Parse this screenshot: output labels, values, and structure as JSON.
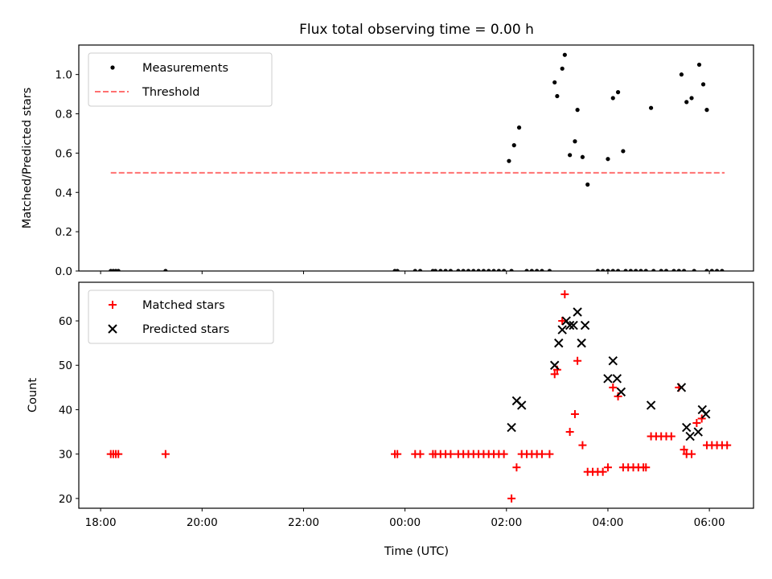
{
  "chart_data": {
    "title": "Flux total observing time = 0.00 h",
    "xlabel": "Time (UTC)",
    "x_unit": "hours since 18:00 UTC",
    "xlim": [
      -0.43,
      12.87
    ],
    "xticks": [
      {
        "v": 0,
        "label": "18:00"
      },
      {
        "v": 2,
        "label": "20:00"
      },
      {
        "v": 4,
        "label": "22:00"
      },
      {
        "v": 6,
        "label": "00:00"
      },
      {
        "v": 8,
        "label": "02:00"
      },
      {
        "v": 10,
        "label": "04:00"
      },
      {
        "v": 12,
        "label": "06:00"
      }
    ],
    "panels": [
      {
        "type": "scatter",
        "ylabel": "Matched/Predicted stars",
        "ylim": [
          0,
          1.15
        ],
        "yticks": [
          {
            "v": 0,
            "label": "0.0"
          },
          {
            "v": 0.2,
            "label": "0.2"
          },
          {
            "v": 0.4,
            "label": "0.4"
          },
          {
            "v": 0.6,
            "label": "0.6"
          },
          {
            "v": 0.8,
            "label": "0.8"
          },
          {
            "v": 1.0,
            "label": "1.0"
          }
        ],
        "legend_position": "top-left",
        "threshold": {
          "name": "Threshold",
          "y": 0.5,
          "x_range": [
            0.2,
            12.3
          ],
          "color": "#ff7070"
        },
        "series": [
          {
            "name": "Measurements",
            "marker": "dot",
            "color": "#000000",
            "x": [
              0.2,
              0.25,
              0.3,
              0.35,
              1.28,
              5.8,
              5.85,
              6.2,
              6.3,
              6.55,
              6.6,
              6.7,
              6.8,
              6.9,
              7.05,
              7.15,
              7.25,
              7.35,
              7.45,
              7.55,
              7.65,
              7.75,
              7.85,
              7.95,
              8.1,
              8.4,
              8.5,
              8.6,
              8.7,
              8.85,
              9.8,
              9.9,
              10.0,
              10.1,
              10.2,
              10.35,
              10.45,
              10.55,
              10.65,
              10.75,
              10.9,
              11.05,
              11.15,
              11.3,
              11.4,
              11.5,
              11.7,
              11.95,
              12.05,
              12.15,
              12.25,
              8.05,
              8.15,
              8.25,
              8.95,
              9.0,
              9.1,
              9.15,
              9.25,
              9.35,
              9.4,
              9.5,
              9.6,
              10.0,
              10.1,
              10.2,
              10.3,
              10.85,
              11.45,
              11.55,
              11.65,
              11.8,
              11.88,
              11.95
            ],
            "y": [
              0,
              0,
              0,
              0,
              0,
              0,
              0,
              0,
              0,
              0,
              0,
              0,
              0,
              0,
              0,
              0,
              0,
              0,
              0,
              0,
              0,
              0,
              0,
              0,
              0,
              0,
              0,
              0,
              0,
              0,
              0,
              0,
              0,
              0,
              0,
              0,
              0,
              0,
              0,
              0,
              0,
              0,
              0,
              0,
              0,
              0,
              0,
              0,
              0,
              0,
              0,
              0.56,
              0.64,
              0.73,
              0.96,
              0.89,
              1.03,
              1.1,
              0.59,
              0.66,
              0.82,
              0.58,
              0.44,
              0.57,
              0.88,
              0.91,
              0.61,
              0.83,
              1.0,
              0.86,
              0.88,
              1.05,
              0.95,
              0.82
            ]
          }
        ]
      },
      {
        "type": "scatter",
        "ylabel": "Count",
        "ylim": [
          17.8,
          68.7
        ],
        "yticks": [
          {
            "v": 20,
            "label": "20"
          },
          {
            "v": 30,
            "label": "30"
          },
          {
            "v": 40,
            "label": "40"
          },
          {
            "v": 50,
            "label": "50"
          },
          {
            "v": 60,
            "label": "60"
          }
        ],
        "legend_position": "top-left",
        "series": [
          {
            "name": "Matched stars",
            "marker": "plus",
            "color": "#ff0000",
            "x": [
              0.2,
              0.25,
              0.3,
              0.35,
              1.28,
              5.8,
              5.85,
              6.2,
              6.3,
              6.55,
              6.6,
              6.7,
              6.8,
              6.9,
              7.05,
              7.15,
              7.25,
              7.35,
              7.45,
              7.55,
              7.65,
              7.75,
              7.85,
              7.95,
              8.1,
              8.2,
              8.3,
              8.4,
              8.5,
              8.6,
              8.7,
              8.85,
              8.95,
              9.0,
              9.1,
              9.15,
              9.25,
              9.35,
              9.4,
              9.5,
              9.6,
              9.7,
              9.8,
              9.9,
              10.0,
              10.1,
              10.2,
              10.3,
              10.4,
              10.5,
              10.6,
              10.7,
              10.75,
              10.85,
              10.95,
              11.05,
              11.15,
              11.25,
              11.4,
              11.5,
              11.55,
              11.65,
              11.75,
              11.85,
              11.95,
              12.05,
              12.15,
              12.25,
              12.35
            ],
            "y": [
              30,
              30,
              30,
              30,
              30,
              30,
              30,
              30,
              30,
              30,
              30,
              30,
              30,
              30,
              30,
              30,
              30,
              30,
              30,
              30,
              30,
              30,
              30,
              30,
              20,
              27,
              30,
              30,
              30,
              30,
              30,
              30,
              48,
              49,
              60,
              66,
              35,
              39,
              51,
              32,
              26,
              26,
              26,
              26,
              27,
              45,
              43,
              27,
              27,
              27,
              27,
              27,
              27,
              34,
              34,
              34,
              34,
              34,
              45,
              31,
              30,
              30,
              37,
              38,
              32,
              32,
              32,
              32,
              32
            ]
          },
          {
            "name": "Predicted stars",
            "marker": "x",
            "color": "#000000",
            "x": [
              8.1,
              8.2,
              8.3,
              8.95,
              9.03,
              9.1,
              9.18,
              9.25,
              9.32,
              9.4,
              9.48,
              9.55,
              10.0,
              10.1,
              10.18,
              10.26,
              10.85,
              11.45,
              11.55,
              11.62,
              11.78,
              11.86,
              11.93
            ],
            "y": [
              36,
              42,
              41,
              50,
              55,
              58,
              60,
              59,
              59,
              62,
              55,
              59,
              47,
              51,
              47,
              44,
              41,
              45,
              36,
              34,
              35,
              40,
              39
            ]
          }
        ]
      }
    ]
  }
}
